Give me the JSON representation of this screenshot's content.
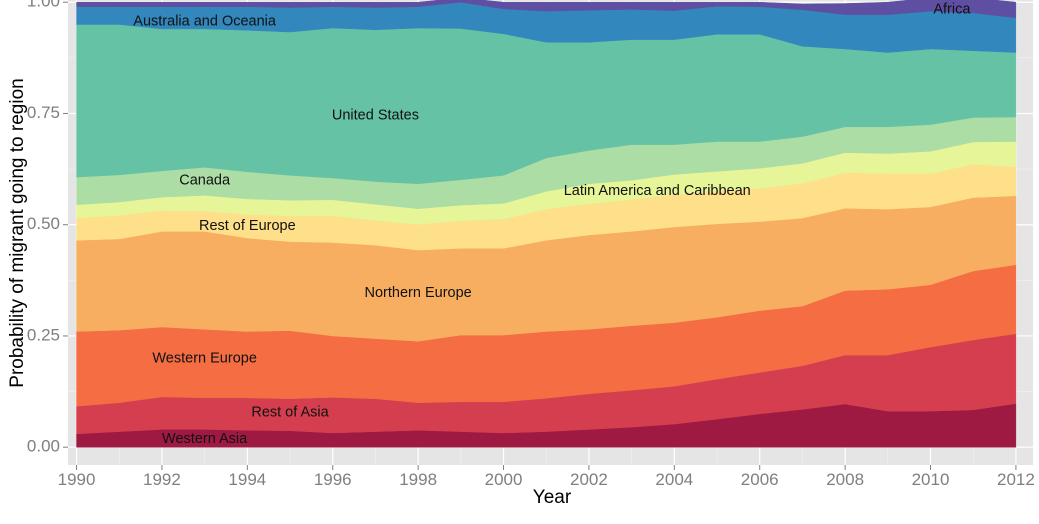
{
  "chart_data": {
    "type": "area",
    "stacked": true,
    "xlabel": "Year",
    "ylabel": "Probability of migrant going to region",
    "xlim": [
      1989.8,
      2012.4
    ],
    "ylim": [
      -0.04,
      1.005
    ],
    "x_ticks": [
      1990,
      1992,
      1994,
      1996,
      1998,
      2000,
      2002,
      2004,
      2006,
      2008,
      2010,
      2012
    ],
    "x_tick_labels": [
      "1990",
      "1992",
      "1994",
      "1996",
      "1998",
      "2000",
      "2002",
      "2004",
      "2006",
      "2008",
      "2010",
      "2012"
    ],
    "y_ticks": [
      0,
      0.25,
      0.5,
      0.75,
      1.0
    ],
    "y_tick_labels": [
      "0.00",
      "0.25",
      "0.50",
      "0.75",
      "1.00"
    ],
    "grid": true,
    "legend": "none",
    "x": [
      1990,
      1991,
      1992,
      1993,
      1994,
      1995,
      1996,
      1997,
      1998,
      1999,
      2000,
      2001,
      2002,
      2003,
      2004,
      2005,
      2006,
      2007,
      2008,
      2009,
      2010,
      2011,
      2012
    ],
    "series": [
      {
        "name": "Western Asia",
        "color": "#9e1a43",
        "values": [
          0.03,
          0.035,
          0.04,
          0.04,
          0.038,
          0.037,
          0.032,
          0.035,
          0.038,
          0.035,
          0.032,
          0.035,
          0.04,
          0.045,
          0.052,
          0.063,
          0.075,
          0.085,
          0.097,
          0.081,
          0.081,
          0.084,
          0.098
        ]
      },
      {
        "name": "Rest of Asia",
        "color": "#d53e4f",
        "values": [
          0.062,
          0.065,
          0.073,
          0.071,
          0.073,
          0.072,
          0.08,
          0.074,
          0.062,
          0.067,
          0.07,
          0.075,
          0.08,
          0.083,
          0.085,
          0.09,
          0.093,
          0.098,
          0.11,
          0.126,
          0.144,
          0.157,
          0.157
        ]
      },
      {
        "name": "Western Europe",
        "color": "#f46d43",
        "values": [
          0.168,
          0.163,
          0.157,
          0.154,
          0.149,
          0.153,
          0.138,
          0.135,
          0.138,
          0.15,
          0.15,
          0.15,
          0.145,
          0.145,
          0.143,
          0.139,
          0.139,
          0.134,
          0.145,
          0.148,
          0.14,
          0.155,
          0.155
        ]
      },
      {
        "name": "Northern Europe",
        "color": "#f8ae61",
        "values": [
          0.205,
          0.205,
          0.215,
          0.22,
          0.21,
          0.2,
          0.21,
          0.21,
          0.205,
          0.195,
          0.195,
          0.205,
          0.212,
          0.212,
          0.215,
          0.21,
          0.2,
          0.198,
          0.185,
          0.18,
          0.175,
          0.165,
          0.155
        ]
      },
      {
        "name": "Rest of Europe",
        "color": "#fee08b",
        "values": [
          0.05,
          0.053,
          0.047,
          0.046,
          0.053,
          0.058,
          0.06,
          0.056,
          0.058,
          0.062,
          0.066,
          0.07,
          0.07,
          0.072,
          0.073,
          0.074,
          0.075,
          0.078,
          0.08,
          0.08,
          0.075,
          0.075,
          0.065
        ]
      },
      {
        "name": "Latin America and Caribbean",
        "color": "#e6f598",
        "values": [
          0.03,
          0.03,
          0.03,
          0.035,
          0.035,
          0.035,
          0.036,
          0.036,
          0.035,
          0.035,
          0.035,
          0.04,
          0.045,
          0.043,
          0.045,
          0.044,
          0.045,
          0.045,
          0.045,
          0.045,
          0.05,
          0.05,
          0.057
        ]
      },
      {
        "name": "Canada",
        "color": "#abdda4",
        "values": [
          0.062,
          0.061,
          0.059,
          0.063,
          0.061,
          0.056,
          0.049,
          0.051,
          0.056,
          0.057,
          0.063,
          0.075,
          0.075,
          0.08,
          0.067,
          0.067,
          0.06,
          0.06,
          0.058,
          0.06,
          0.06,
          0.055,
          0.055
        ]
      },
      {
        "name": "United States",
        "color": "#66c2a5",
        "values": [
          0.343,
          0.338,
          0.319,
          0.311,
          0.318,
          0.322,
          0.337,
          0.341,
          0.35,
          0.34,
          0.318,
          0.26,
          0.243,
          0.236,
          0.236,
          0.241,
          0.241,
          0.203,
          0.175,
          0.167,
          0.17,
          0.15,
          0.145
        ]
      },
      {
        "name": "Australia and Oceania",
        "color": "#3288bd",
        "values": [
          0.04,
          0.04,
          0.05,
          0.05,
          0.053,
          0.055,
          0.048,
          0.05,
          0.048,
          0.059,
          0.056,
          0.07,
          0.072,
          0.068,
          0.065,
          0.063,
          0.062,
          0.082,
          0.077,
          0.085,
          0.085,
          0.085,
          0.078
        ]
      },
      {
        "name": "Africa",
        "color": "#5e4fa2",
        "values": [
          0.01,
          0.01,
          0.01,
          0.01,
          0.01,
          0.012,
          0.01,
          0.012,
          0.01,
          0.01,
          0.015,
          0.02,
          0.018,
          0.016,
          0.019,
          0.009,
          0.01,
          0.013,
          0.025,
          0.028,
          0.03,
          0.034,
          0.035
        ]
      }
    ],
    "annotations": [
      {
        "text": "Africa",
        "x": 2010.5,
        "y": 0.983
      },
      {
        "text": "Australia and Oceania",
        "x": 1993.0,
        "y": 0.956
      },
      {
        "text": "United States",
        "x": 1997.0,
        "y": 0.745
      },
      {
        "text": "Canada",
        "x": 1993.0,
        "y": 0.599
      },
      {
        "text": "Latin America and Caribbean",
        "x": 2003.6,
        "y": 0.575
      },
      {
        "text": "Rest of Europe",
        "x": 1994.0,
        "y": 0.497
      },
      {
        "text": "Northern Europe",
        "x": 1998.0,
        "y": 0.346
      },
      {
        "text": "Western Europe",
        "x": 1993.0,
        "y": 0.199
      },
      {
        "text": "Rest of Asia",
        "x": 1995.0,
        "y": 0.078
      },
      {
        "text": "Western Asia",
        "x": 1993.0,
        "y": 0.018
      }
    ]
  }
}
